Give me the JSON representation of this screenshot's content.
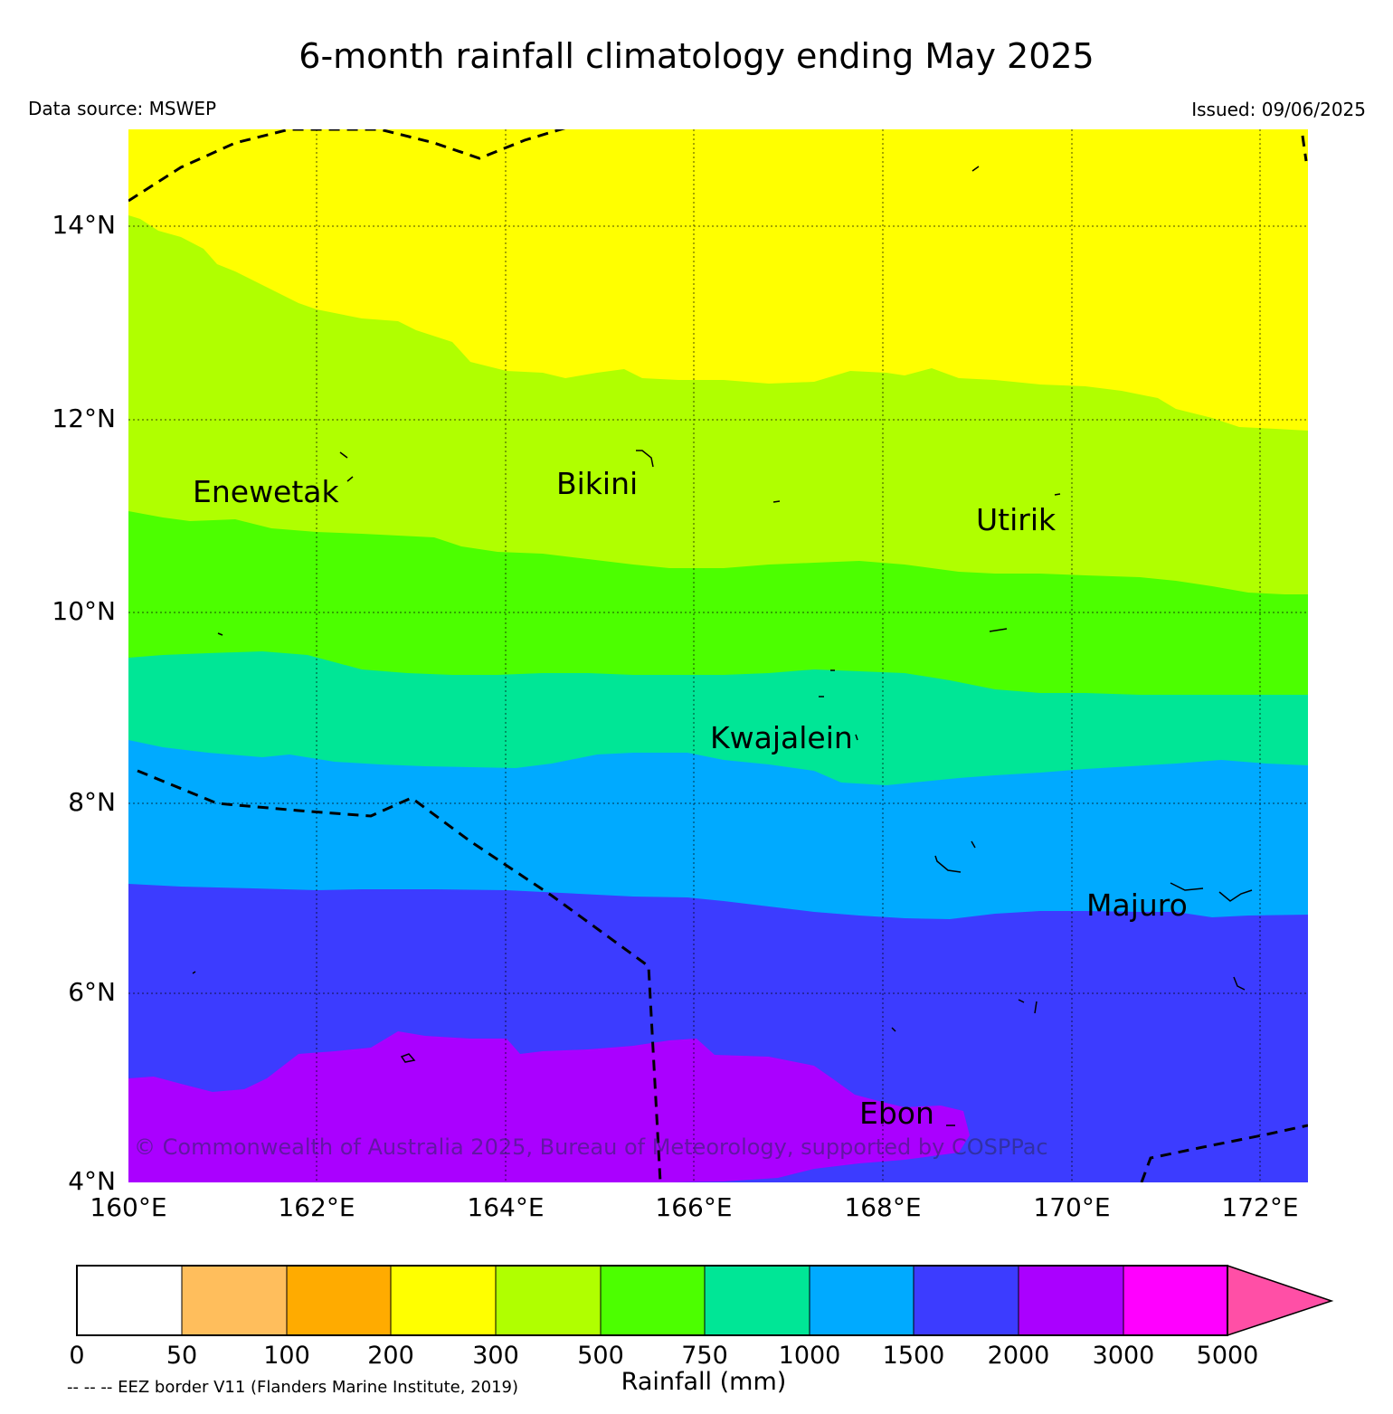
{
  "header": {
    "title": "6-month rainfall climatology ending May 2025",
    "data_source": "Data source: MSWEP",
    "issued": "Issued: 09/06/2025"
  },
  "axes": {
    "lat_labels": [
      "14°N",
      "12°N",
      "10°N",
      "8°N",
      "6°N",
      "4°N"
    ],
    "lon_labels": [
      "160°E",
      "162°E",
      "164°E",
      "166°E",
      "168°E",
      "170°E",
      "172°E"
    ]
  },
  "places": {
    "enewetak": "Enewetak",
    "bikini": "Bikini",
    "utirik": "Utirik",
    "kwajalein": "Kwajalein",
    "majuro": "Majuro",
    "ebon": "Ebon"
  },
  "copyright": "© Commonwealth of Australia 2025, Bureau of Meteorology, supported by COSPPac",
  "legend": {
    "title": "Rainfall (mm)",
    "eez_note": "-- -- -- EEZ border V11 (Flanders Marine Institute, 2019)",
    "ticks": [
      "0",
      "50",
      "100",
      "200",
      "300",
      "500",
      "750",
      "1000",
      "1500",
      "2000",
      "3000",
      "5000"
    ],
    "colors": [
      "#ffffff",
      "#ffbe5c",
      "#ffab00",
      "#ffff00",
      "#b0ff00",
      "#4cff00",
      "#00e696",
      "#00aaff",
      "#3c3cff",
      "#aa00ff",
      "#ff00ff",
      "#ff4fa6"
    ]
  },
  "colors": {
    "yellow": "#ffff00",
    "lime": "#b0ff00",
    "green": "#4cff00",
    "teal": "#00e696",
    "sky": "#00aaff",
    "blue": "#3c3cff",
    "purple": "#aa00ff"
  }
}
